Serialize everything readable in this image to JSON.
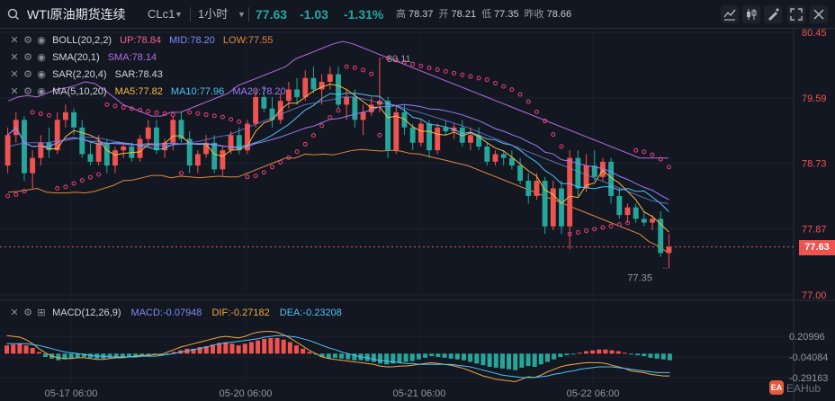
{
  "header": {
    "symbol_name": "WTI原油期货连续",
    "symbol_code": "CLc1",
    "interval": "1小时",
    "last_price": "77.63",
    "change": "-1.03",
    "change_pct": "-1.31%",
    "ohlc": [
      {
        "label": "高",
        "value": "78.37"
      },
      {
        "label": "开",
        "value": "78.21"
      },
      {
        "label": "低",
        "value": "77.35"
      },
      {
        "label": "昨收",
        "value": "78.66"
      }
    ],
    "icons": [
      "search-icon",
      "chevron-down-icon"
    ]
  },
  "toolbar": {
    "icons": [
      "indicator-icon",
      "chart-type-icon",
      "fullscreen-icon",
      "close-icon"
    ]
  },
  "legend": {
    "boll": {
      "name": "BOLL(20,2,2)",
      "up": "UP:78.84",
      "mid": "MID:78.20",
      "low": "LOW:77.55"
    },
    "sma": {
      "name": "SMA(20,1)",
      "value": "SMA:78.14"
    },
    "sar": {
      "name": "SAR(2,20,4)",
      "value": "SAR:78.43"
    },
    "ma": {
      "name": "MA(5,10,20)",
      "ma5": "MA5:77.82",
      "ma10": "MA10:77.96",
      "ma20": "MA20:78.20"
    }
  },
  "macd_legend": {
    "name": "MACD(12,26,9)",
    "macd": "MACD:-0.07948",
    "dif": "DIF:-0.27182",
    "dea": "DEA:-0.23208"
  },
  "colors": {
    "up": "#ef5350",
    "down": "#26a69a",
    "boll_up": "#f06292",
    "boll_mid": "#7c8cf0",
    "boll_low": "#e0883a",
    "sma": "#b46be0",
    "sar": "#ec407a",
    "ma5": "#f5b942",
    "ma10": "#4fc3f7",
    "ma20": "#9c7cf5",
    "dif": "#f5a742",
    "dea": "#4fc3f7"
  },
  "chart_data": [
    {
      "type": "candlestick",
      "x_labels": [
        "05-17 06:00",
        "05-20 06:00",
        "05-21 06:00",
        "05-22 06:00"
      ],
      "y_ticks": [
        "80.45",
        "79.59",
        "78.73",
        "77.87",
        "77.00"
      ],
      "ylim": [
        77.0,
        80.45
      ],
      "last_price_label": "77.63",
      "annotations": {
        "high": "80.11",
        "low": "77.35"
      },
      "series_ohlc": [
        [
          78.7,
          79.2,
          78.6,
          79.1
        ],
        [
          79.1,
          79.4,
          79.0,
          79.3
        ],
        [
          79.3,
          79.35,
          78.5,
          78.6
        ],
        [
          78.6,
          78.9,
          78.4,
          78.8
        ],
        [
          78.8,
          79.1,
          78.7,
          79.0
        ],
        [
          79.0,
          79.2,
          78.8,
          78.9
        ],
        [
          78.9,
          79.4,
          78.85,
          79.3
        ],
        [
          79.3,
          79.5,
          79.2,
          79.4
        ],
        [
          79.4,
          79.45,
          79.1,
          79.2
        ],
        [
          79.2,
          79.3,
          78.8,
          78.85
        ],
        [
          78.85,
          79.0,
          78.7,
          78.75
        ],
        [
          78.75,
          79.1,
          78.7,
          79.0
        ],
        [
          79.0,
          79.05,
          78.6,
          78.7
        ],
        [
          78.7,
          78.95,
          78.6,
          78.9
        ],
        [
          78.9,
          79.0,
          78.8,
          78.95
        ],
        [
          78.95,
          79.0,
          78.75,
          78.8
        ],
        [
          78.8,
          79.1,
          78.75,
          79.05
        ],
        [
          79.05,
          79.3,
          78.95,
          79.2
        ],
        [
          79.2,
          79.3,
          78.85,
          78.9
        ],
        [
          78.9,
          79.05,
          78.8,
          79.0
        ],
        [
          79.0,
          79.35,
          78.9,
          79.3
        ],
        [
          79.3,
          79.4,
          79.0,
          79.05
        ],
        [
          79.05,
          79.15,
          78.6,
          78.7
        ],
        [
          78.7,
          78.9,
          78.6,
          78.85
        ],
        [
          78.85,
          79.1,
          78.8,
          79.0
        ],
        [
          79.0,
          79.1,
          78.6,
          78.65
        ],
        [
          78.65,
          78.95,
          78.55,
          78.9
        ],
        [
          78.9,
          79.15,
          78.85,
          79.1
        ],
        [
          79.1,
          79.2,
          78.85,
          78.9
        ],
        [
          78.9,
          79.3,
          78.85,
          79.25
        ],
        [
          79.25,
          79.7,
          79.2,
          79.6
        ],
        [
          79.6,
          79.75,
          79.4,
          79.45
        ],
        [
          79.45,
          79.6,
          79.2,
          79.3
        ],
        [
          79.3,
          79.65,
          79.25,
          79.55
        ],
        [
          79.55,
          79.8,
          79.45,
          79.7
        ],
        [
          79.7,
          79.85,
          79.5,
          79.6
        ],
        [
          79.6,
          79.95,
          79.55,
          79.85
        ],
        [
          79.85,
          80.0,
          79.65,
          79.7
        ],
        [
          79.7,
          79.9,
          79.5,
          79.8
        ],
        [
          79.8,
          80.0,
          79.7,
          79.9
        ],
        [
          79.9,
          80.0,
          79.45,
          79.5
        ],
        [
          79.5,
          79.7,
          79.3,
          79.6
        ],
        [
          79.6,
          79.7,
          79.2,
          79.3
        ],
        [
          79.3,
          79.5,
          79.1,
          79.4
        ],
        [
          79.4,
          79.6,
          79.35,
          79.5
        ],
        [
          79.5,
          80.11,
          79.4,
          79.55
        ],
        [
          79.55,
          79.6,
          78.8,
          78.9
        ],
        [
          78.9,
          79.5,
          78.85,
          79.4
        ],
        [
          79.4,
          79.5,
          79.1,
          79.2
        ],
        [
          79.2,
          79.25,
          78.9,
          79.0
        ],
        [
          79.0,
          79.3,
          78.95,
          79.25
        ],
        [
          79.25,
          79.3,
          78.8,
          78.9
        ],
        [
          78.9,
          79.25,
          78.85,
          79.2
        ],
        [
          79.2,
          79.3,
          79.1,
          79.15
        ],
        [
          79.15,
          79.25,
          79.05,
          79.2
        ],
        [
          79.2,
          79.3,
          78.95,
          79.0
        ],
        [
          79.0,
          79.2,
          78.9,
          79.1
        ],
        [
          79.1,
          79.2,
          78.9,
          78.95
        ],
        [
          78.95,
          79.0,
          78.7,
          78.75
        ],
        [
          78.75,
          78.9,
          78.7,
          78.85
        ],
        [
          78.85,
          78.9,
          78.7,
          78.8
        ],
        [
          78.8,
          78.9,
          78.65,
          78.7
        ],
        [
          78.7,
          78.8,
          78.45,
          78.5
        ],
        [
          78.5,
          78.6,
          78.2,
          78.3
        ],
        [
          78.3,
          78.6,
          78.25,
          78.5
        ],
        [
          78.5,
          78.55,
          77.8,
          77.9
        ],
        [
          77.9,
          78.5,
          77.85,
          78.4
        ],
        [
          78.4,
          78.5,
          77.8,
          77.9
        ],
        [
          77.9,
          78.9,
          77.6,
          78.8
        ],
        [
          78.8,
          78.9,
          78.3,
          78.4
        ],
        [
          78.4,
          78.85,
          78.35,
          78.7
        ],
        [
          78.7,
          78.9,
          78.5,
          78.55
        ],
        [
          78.55,
          78.8,
          78.5,
          78.75
        ],
        [
          78.75,
          78.8,
          78.2,
          78.3
        ],
        [
          78.3,
          78.4,
          78.0,
          78.05
        ],
        [
          78.05,
          78.2,
          77.95,
          78.15
        ],
        [
          78.15,
          78.2,
          77.95,
          78.0
        ],
        [
          78.0,
          78.1,
          77.9,
          77.95
        ],
        [
          77.95,
          78.05,
          77.85,
          78.0
        ],
        [
          78.0,
          78.1,
          77.5,
          77.55
        ],
        [
          77.55,
          77.8,
          77.35,
          77.63
        ]
      ],
      "boll_up": [
        79.55,
        79.6,
        79.62,
        79.6,
        79.65,
        79.7,
        79.72,
        79.75,
        79.8,
        79.78,
        79.7,
        79.6,
        79.5,
        79.45,
        79.4,
        79.35,
        79.35,
        79.4,
        79.4,
        79.45,
        79.5,
        79.55,
        79.6,
        79.65,
        79.75,
        79.8,
        79.85,
        79.9,
        79.95,
        80.0,
        80.1,
        80.15,
        80.2,
        80.25,
        80.3,
        80.33,
        80.3,
        80.25,
        80.2,
        80.15,
        80.1,
        80.05,
        80.0,
        79.95,
        79.9,
        79.85,
        79.8,
        79.75,
        79.7,
        79.65,
        79.6,
        79.55,
        79.5,
        79.45,
        79.4,
        79.35,
        79.3,
        79.25,
        79.2,
        79.15,
        79.1,
        79.05,
        79.0,
        78.95,
        78.9,
        78.85,
        78.8,
        78.8,
        78.8,
        78.8
      ],
      "boll_mid": [
        78.95,
        78.98,
        79.0,
        79.0,
        79.0,
        79.02,
        79.03,
        79.05,
        79.07,
        79.07,
        79.05,
        79.02,
        79.0,
        78.98,
        78.97,
        78.96,
        78.96,
        78.97,
        78.98,
        79.0,
        79.02,
        79.05,
        79.08,
        79.1,
        79.15,
        79.2,
        79.25,
        79.3,
        79.35,
        79.4,
        79.45,
        79.5,
        79.52,
        79.55,
        79.57,
        79.6,
        79.6,
        79.58,
        79.55,
        79.52,
        79.5,
        79.47,
        79.43,
        79.4,
        79.36,
        79.32,
        79.28,
        79.24,
        79.2,
        79.15,
        79.1,
        79.05,
        79.0,
        78.95,
        78.9,
        78.85,
        78.8,
        78.75,
        78.7,
        78.65,
        78.6,
        78.55,
        78.5,
        78.45,
        78.4,
        78.35,
        78.3,
        78.25,
        78.22,
        78.2
      ],
      "boll_low": [
        78.35,
        78.36,
        78.38,
        78.4,
        78.35,
        78.34,
        78.34,
        78.35,
        78.34,
        78.36,
        78.4,
        78.44,
        78.5,
        78.51,
        78.54,
        78.57,
        78.57,
        78.54,
        78.56,
        78.55,
        78.54,
        78.55,
        78.56,
        78.55,
        78.55,
        78.6,
        78.65,
        78.7,
        78.75,
        78.8,
        78.8,
        78.85,
        78.84,
        78.85,
        78.84,
        78.87,
        78.9,
        78.91,
        78.9,
        78.89,
        78.9,
        78.89,
        78.86,
        78.85,
        78.82,
        78.79,
        78.76,
        78.73,
        78.7,
        78.65,
        78.6,
        78.55,
        78.5,
        78.45,
        78.4,
        78.35,
        78.3,
        78.25,
        78.2,
        78.15,
        78.1,
        78.05,
        78.0,
        77.95,
        77.9,
        77.85,
        77.8,
        77.7,
        77.64,
        77.55
      ]
    },
    {
      "type": "macd",
      "y_ticks": [
        "0.20996",
        "-0.04084",
        "-0.29163"
      ],
      "ylim": [
        -0.4,
        0.32
      ],
      "hist": [
        0.1,
        0.11,
        0.12,
        0.1,
        0.07,
        0.02,
        -0.04,
        -0.06,
        -0.08,
        -0.07,
        -0.06,
        -0.05,
        -0.04,
        -0.05,
        -0.06,
        -0.06,
        -0.05,
        -0.04,
        -0.05,
        -0.04,
        -0.03,
        -0.02,
        -0.02,
        -0.01,
        -0.02,
        -0.01,
        0.02,
        0.04,
        0.06,
        0.06,
        0.08,
        0.09,
        0.11,
        0.13,
        0.14,
        0.12,
        0.1,
        0.12,
        0.14,
        0.16,
        0.18,
        0.19,
        0.19,
        0.17,
        0.14,
        0.1,
        0.06,
        0.02,
        -0.01,
        -0.04,
        -0.06,
        -0.05,
        -0.06,
        -0.07,
        -0.08,
        -0.08,
        -0.09,
        -0.1,
        -0.12,
        -0.13,
        -0.12,
        -0.11,
        -0.1,
        -0.09,
        -0.07,
        -0.05,
        -0.03,
        -0.04,
        -0.05,
        -0.06,
        -0.07,
        -0.08,
        -0.1,
        -0.12,
        -0.14,
        -0.16,
        -0.17,
        -0.18,
        -0.19,
        -0.2,
        -0.17,
        -0.15,
        -0.16,
        -0.13,
        -0.1,
        -0.07,
        -0.04,
        -0.02,
        -0.01,
        0.01,
        0.03,
        0.04,
        0.05,
        0.05,
        0.04,
        0.03,
        0.01,
        -0.01,
        -0.02,
        -0.03,
        -0.05,
        -0.06,
        -0.07,
        -0.08
      ],
      "dif": [
        0.22,
        0.21,
        0.2,
        0.17,
        0.12,
        0.06,
        0.01,
        -0.03,
        -0.05,
        -0.06,
        -0.06,
        -0.05,
        -0.05,
        -0.06,
        -0.07,
        -0.07,
        -0.06,
        -0.05,
        -0.05,
        -0.04,
        -0.03,
        -0.02,
        -0.02,
        -0.01,
        -0.01,
        0.02,
        0.05,
        0.08,
        0.1,
        0.12,
        0.14,
        0.16,
        0.18,
        0.2,
        0.21,
        0.2,
        0.19,
        0.21,
        0.24,
        0.26,
        0.27,
        0.27,
        0.26,
        0.23,
        0.19,
        0.14,
        0.09,
        0.04,
        0.0,
        -0.04,
        -0.06,
        -0.07,
        -0.08,
        -0.09,
        -0.1,
        -0.11,
        -0.12,
        -0.13,
        -0.15,
        -0.16,
        -0.16,
        -0.15,
        -0.15,
        -0.14,
        -0.13,
        -0.12,
        -0.11,
        -0.12,
        -0.13,
        -0.14,
        -0.16,
        -0.18,
        -0.21,
        -0.24,
        -0.27,
        -0.29,
        -0.31,
        -0.32,
        -0.33,
        -0.34,
        -0.31,
        -0.28,
        -0.29,
        -0.26,
        -0.22,
        -0.19,
        -0.16,
        -0.14,
        -0.13,
        -0.12,
        -0.11,
        -0.11,
        -0.11,
        -0.12,
        -0.14,
        -0.16,
        -0.18,
        -0.21,
        -0.22,
        -0.23,
        -0.25,
        -0.26,
        -0.27,
        -0.27
      ],
      "dea": [
        0.12,
        0.12,
        0.12,
        0.12,
        0.11,
        0.1,
        0.08,
        0.06,
        0.04,
        0.02,
        0.01,
        0.0,
        -0.01,
        -0.02,
        -0.03,
        -0.03,
        -0.04,
        -0.04,
        -0.04,
        -0.04,
        -0.04,
        -0.03,
        -0.03,
        -0.03,
        -0.02,
        -0.01,
        0.0,
        0.02,
        0.03,
        0.05,
        0.06,
        0.08,
        0.1,
        0.12,
        0.13,
        0.14,
        0.15,
        0.16,
        0.17,
        0.18,
        0.2,
        0.21,
        0.22,
        0.22,
        0.21,
        0.2,
        0.18,
        0.16,
        0.13,
        0.1,
        0.07,
        0.05,
        0.02,
        0.0,
        -0.02,
        -0.04,
        -0.05,
        -0.07,
        -0.08,
        -0.09,
        -0.1,
        -0.11,
        -0.12,
        -0.12,
        -0.13,
        -0.13,
        -0.13,
        -0.13,
        -0.13,
        -0.13,
        -0.14,
        -0.15,
        -0.16,
        -0.18,
        -0.2,
        -0.22,
        -0.24,
        -0.26,
        -0.27,
        -0.28,
        -0.29,
        -0.29,
        -0.29,
        -0.28,
        -0.27,
        -0.25,
        -0.24,
        -0.22,
        -0.21,
        -0.19,
        -0.18,
        -0.17,
        -0.16,
        -0.16,
        -0.16,
        -0.17,
        -0.18,
        -0.19,
        -0.2,
        -0.21,
        -0.22,
        -0.23,
        -0.23,
        -0.23
      ]
    }
  ]
}
